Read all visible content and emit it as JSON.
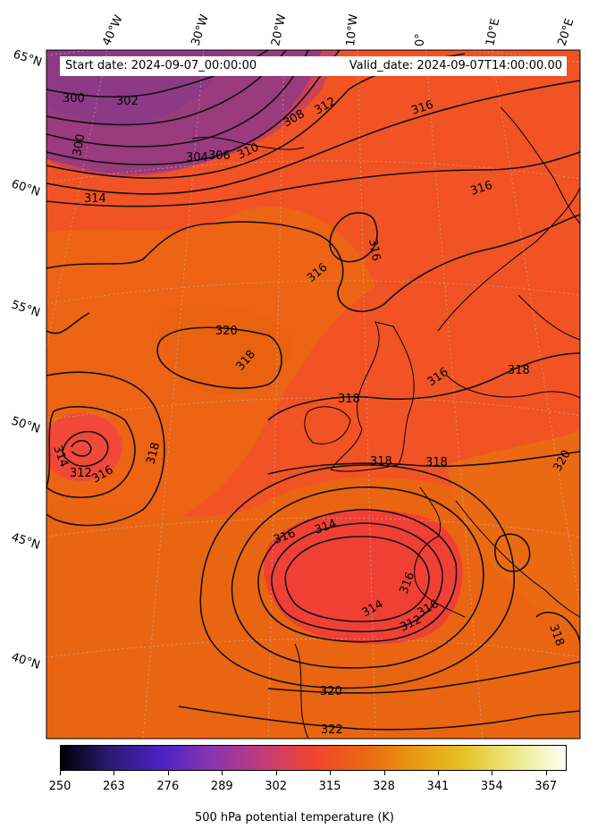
{
  "header": {
    "start": "Start date: 2024-09-07_00:00:00",
    "valid": "Valid_date: 2024-09-07T14:00:00.00"
  },
  "colormap": {
    "stops": [
      "#000004",
      "#2b1b73",
      "#4c23c4",
      "#8a34b0",
      "#c23c78",
      "#f2432f",
      "#ec6611",
      "#e89913",
      "#e6c324",
      "#ecea8a",
      "#fffff6"
    ]
  },
  "colorbar": {
    "ticks": [
      "250",
      "263",
      "276",
      "289",
      "302",
      "315",
      "328",
      "341",
      "354",
      "367"
    ],
    "label": "500 hPa potential temperature (K)",
    "range": [
      250,
      372
    ]
  },
  "axes": {
    "lon_labels": [
      "40°W",
      "30°W",
      "20°W",
      "10°W",
      "0°",
      "10°E",
      "20°E"
    ],
    "lat_labels": [
      "65°N",
      "60°N",
      "55°N",
      "50°N",
      "45°N",
      "40°N"
    ]
  },
  "contour_labels": [
    "300",
    "302",
    "304",
    "306",
    "308",
    "310",
    "312",
    "316",
    "316",
    "314",
    "300",
    "316",
    "316",
    "320",
    "318",
    "316",
    "318",
    "318",
    "318",
    "318",
    "314",
    "312",
    "316",
    "318",
    "320",
    "316",
    "314",
    "316",
    "312",
    "320",
    "322",
    "314",
    "318",
    "316"
  ],
  "colors": {
    "cold": "#9a3b7d",
    "base": "#f25324",
    "warm_orange": "#ea6012",
    "warm_core": "#f04035"
  }
}
